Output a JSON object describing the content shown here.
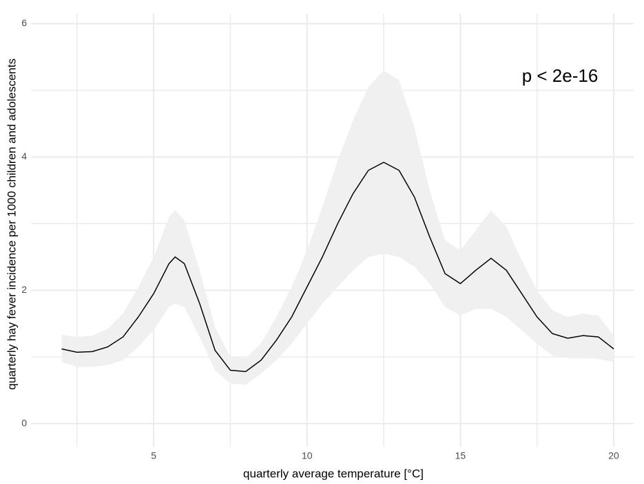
{
  "chart_data": {
    "type": "line",
    "x_label": "quarterly average temperature [°C]",
    "y_label": "quarterly hay fever incidence per 1000 children and adolescents",
    "annotation": "p < 2e-16",
    "x": [
      2.0,
      2.5,
      3.0,
      3.5,
      4.0,
      4.5,
      5.0,
      5.5,
      5.7,
      6.0,
      6.5,
      7.0,
      7.5,
      8.0,
      8.5,
      9.0,
      9.5,
      10.0,
      10.5,
      11.0,
      11.5,
      12.0,
      12.5,
      13.0,
      13.5,
      14.0,
      14.5,
      15.0,
      15.5,
      16.0,
      16.5,
      17.0,
      17.5,
      18.0,
      18.5,
      19.0,
      19.5,
      20.0
    ],
    "series": [
      {
        "color": "#000000",
        "band_color": "#f0f0f0",
        "values": [
          1.12,
          1.07,
          1.08,
          1.15,
          1.3,
          1.6,
          1.95,
          2.4,
          2.5,
          2.4,
          1.8,
          1.1,
          0.8,
          0.78,
          0.95,
          1.25,
          1.6,
          2.05,
          2.5,
          3.0,
          3.45,
          3.8,
          3.92,
          3.8,
          3.4,
          2.8,
          2.25,
          2.1,
          2.3,
          2.48,
          2.3,
          1.95,
          1.6,
          1.35,
          1.28,
          1.32,
          1.3,
          1.12
        ],
        "lower": [
          0.92,
          0.85,
          0.85,
          0.88,
          0.95,
          1.15,
          1.4,
          1.75,
          1.8,
          1.75,
          1.3,
          0.8,
          0.6,
          0.58,
          0.75,
          0.95,
          1.2,
          1.5,
          1.8,
          2.05,
          2.3,
          2.5,
          2.55,
          2.5,
          2.35,
          2.1,
          1.75,
          1.62,
          1.72,
          1.72,
          1.6,
          1.4,
          1.2,
          1.02,
          0.98,
          0.98,
          0.97,
          0.92
        ],
        "upper": [
          1.33,
          1.3,
          1.32,
          1.42,
          1.65,
          2.05,
          2.5,
          3.1,
          3.2,
          3.05,
          2.3,
          1.45,
          1.0,
          0.98,
          1.2,
          1.6,
          2.05,
          2.6,
          3.25,
          3.95,
          4.55,
          5.05,
          5.3,
          5.15,
          4.45,
          3.5,
          2.75,
          2.6,
          2.9,
          3.2,
          2.95,
          2.45,
          2.0,
          1.7,
          1.6,
          1.65,
          1.62,
          1.32
        ]
      }
    ],
    "xlim": [
      1.0,
      20.65
    ],
    "ylim": [
      -0.35,
      6.15
    ],
    "xticks": [
      5,
      10,
      15,
      20
    ],
    "yticks": [
      0,
      2,
      4,
      6
    ],
    "x_minor_ticks": [
      2.5,
      7.5,
      12.5,
      17.5
    ],
    "y_minor_ticks": [
      1,
      3,
      5
    ],
    "grid_color": "#ebebeb",
    "grid": true
  }
}
